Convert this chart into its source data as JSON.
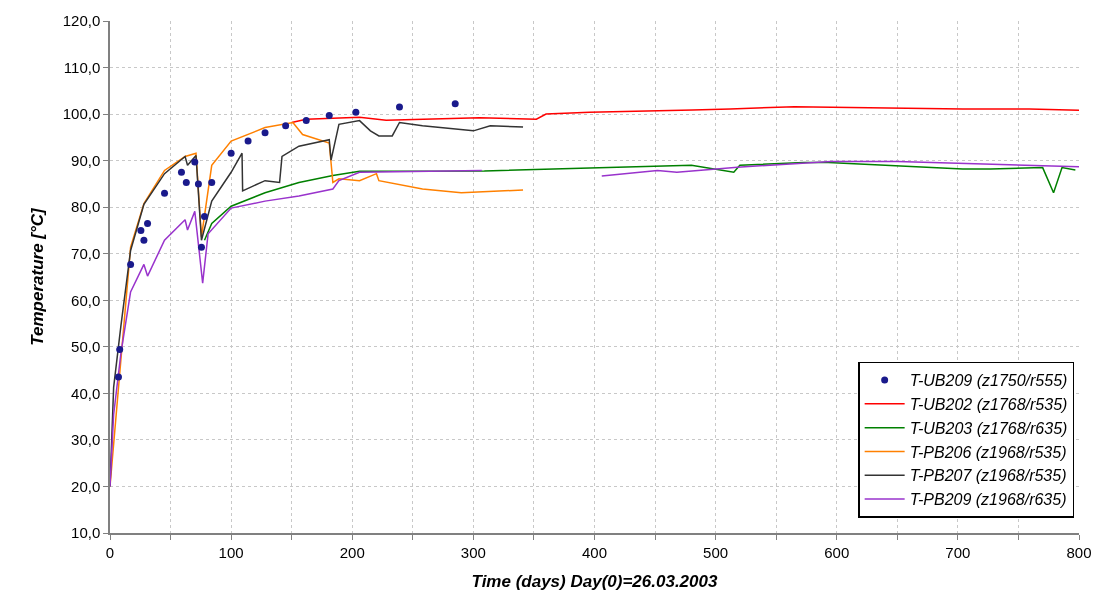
{
  "chart_data": {
    "type": "line",
    "xlabel": "Time (days) Day(0)=26.03.2003",
    "ylabel": "Temperature [°C]",
    "xlim": [
      0,
      800
    ],
    "xticks": [
      0,
      {
        "value": 50,
        "label": null
      },
      100,
      {
        "value": 150,
        "label": null
      },
      200,
      {
        "value": 250,
        "label": null
      },
      300,
      {
        "value": 350,
        "label": null
      },
      400,
      {
        "value": 450,
        "label": null
      },
      500,
      {
        "value": 550,
        "label": null
      },
      600,
      {
        "value": 650,
        "label": null
      },
      700,
      {
        "value": 750,
        "label": null
      },
      800
    ],
    "ylim": [
      10,
      120
    ],
    "yticks": [
      {
        "value": 10,
        "label": "10,0"
      },
      {
        "value": 20,
        "label": "20,0"
      },
      {
        "value": 30,
        "label": "30,0"
      },
      {
        "value": 40,
        "label": "40,0"
      },
      {
        "value": 50,
        "label": "50,0"
      },
      {
        "value": 60,
        "label": "60,0"
      },
      {
        "value": 70,
        "label": "70,0"
      },
      {
        "value": 80,
        "label": "80,0"
      },
      {
        "value": 90,
        "label": "90,0"
      },
      {
        "value": 100,
        "label": "100,0"
      },
      {
        "value": 110,
        "label": "110,0"
      },
      {
        "value": 120,
        "label": "120,0"
      }
    ],
    "grid": true,
    "legend": "bottom right",
    "marker": "none",
    "line_style": "solid",
    "series": [
      {
        "name": "T-UB209 (z1750/r555)",
        "type": "scatter",
        "marker": "circle",
        "color": "#1a1a8c",
        "x": [
          7,
          8,
          17,
          25.5,
          28,
          31,
          45,
          59,
          63,
          70,
          73,
          75.5,
          78,
          84,
          100,
          114,
          128,
          145,
          162,
          181,
          null,
          203,
          239,
          285
        ],
        "values": [
          43.5,
          49.4,
          67.7,
          75,
          72.9,
          76.5,
          83,
          87.5,
          85.3,
          89.7,
          85,
          71.4,
          78,
          85.3,
          91.6,
          94.2,
          96,
          97.5,
          98.6,
          99.7,
          null,
          100.4,
          101.5,
          102.2
        ]
      },
      {
        "name": "T-UB202 (z1768/r535)",
        "color": "#ff0000",
        "x": [
          150,
          162,
          206,
          228,
          305,
          352,
          360,
          396,
          481,
          512,
          565,
          704,
          759,
          800
        ],
        "values": [
          98.2,
          98.9,
          99.3,
          98.7,
          99.2,
          98.9,
          100.0,
          100.4,
          100.9,
          101.1,
          101.6,
          101.1,
          101.1,
          100.8
        ]
      },
      {
        "name": "T-UB203 (z1768/r635)",
        "color": "#008000",
        "x": [
          78,
          84,
          100,
          128,
          156,
          184,
          206,
          309,
          396,
          480,
          515,
          520,
          573,
          593,
          704,
          727,
          770,
          779,
          786,
          797
        ],
        "values": [
          72.9,
          76.5,
          80.2,
          83.1,
          85.3,
          86.8,
          87.7,
          87.8,
          88.4,
          89.0,
          87.5,
          89.0,
          89.6,
          89.6,
          88.2,
          88.2,
          88.5,
          83.1,
          88.5,
          88.0
        ]
      },
      {
        "name": "T-PB206 (z1968/r535)",
        "color": "#ff8000",
        "x": [
          0,
          17,
          28,
          45,
          62,
          71,
          75.5,
          84,
          100,
          128,
          151,
          159,
          181,
          184,
          189,
          206,
          220,
          222,
          258,
          290,
          341
        ],
        "values": [
          20,
          71.4,
          80.8,
          87.9,
          90.9,
          91.6,
          73.6,
          89,
          94.2,
          97.1,
          98.2,
          95.6,
          93.8,
          85.3,
          86.1,
          85.7,
          87.2,
          85.7,
          83.9,
          83.1,
          83.7
        ]
      },
      {
        "name": "T-PB207 (z1968/r535)",
        "color": "#333333",
        "x": [
          0,
          3,
          9,
          17,
          28,
          45,
          62,
          64,
          71,
          75.5,
          84,
          100,
          109,
          109.5,
          128,
          140,
          142,
          156,
          181,
          182.5,
          189,
          206,
          215,
          222,
          233,
          239,
          258,
          300,
          314,
          341
        ],
        "values": [
          20,
          41.3,
          54.5,
          70.7,
          80.6,
          87.2,
          90.9,
          89,
          91.1,
          72.9,
          81.3,
          87.5,
          91.6,
          83.5,
          85.7,
          85.3,
          90.9,
          93.1,
          94.5,
          90.1,
          97.8,
          98.6,
          96.4,
          95.3,
          95.3,
          98.2,
          97.5,
          96.4,
          97.5,
          97.2
        ]
      },
      {
        "name": "T-PB209 (z1968/r635)",
        "color": "#9933cc",
        "x": [
          0,
          3,
          9,
          17,
          28,
          31,
          45,
          62,
          64,
          70,
          76.5,
          81,
          100,
          128,
          156,
          184,
          189,
          206,
          307,
          null,
          406,
          452,
          468,
          518,
          595,
          604,
          650,
          800
        ],
        "values": [
          20,
          35.4,
          48.6,
          61.8,
          67.7,
          65.2,
          72.9,
          77.3,
          75.1,
          79.1,
          63.7,
          74.3,
          79.8,
          81.3,
          82.4,
          83.9,
          85.7,
          87.5,
          87.9,
          null,
          86.7,
          87.9,
          87.5,
          88.6,
          89.8,
          89.8,
          89.8,
          88.7
        ]
      }
    ]
  }
}
